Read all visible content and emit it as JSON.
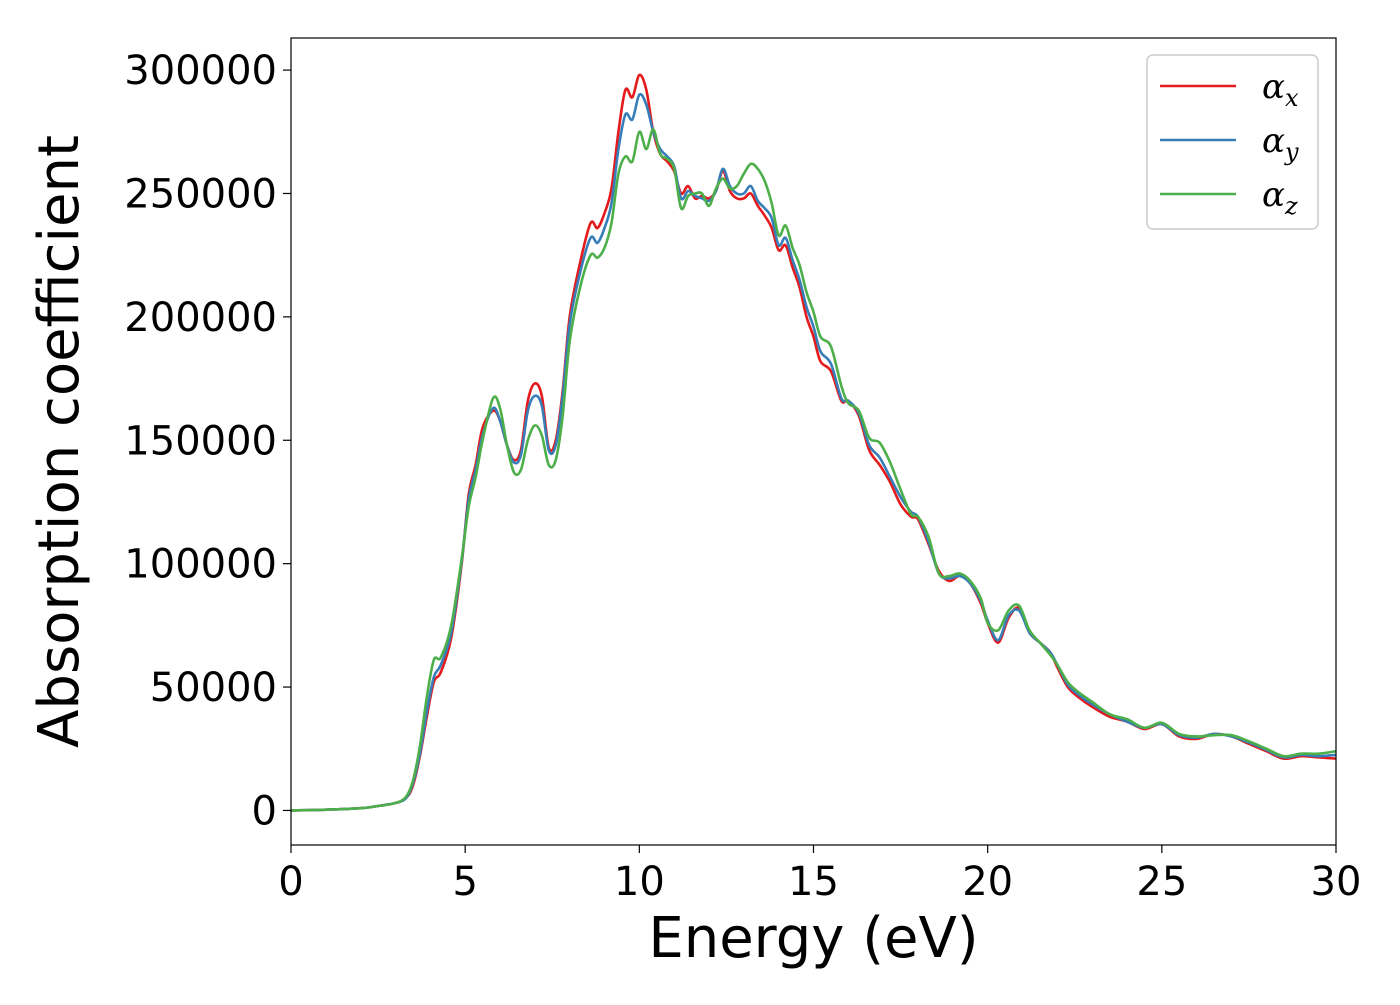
{
  "chart_data": {
    "type": "line",
    "xlabel": "Energy (eV)",
    "ylabel": "Absorption coefficient",
    "xlim": [
      0,
      30
    ],
    "ylim": [
      -14000,
      313000
    ],
    "xticks": [
      0,
      5,
      10,
      15,
      20,
      25,
      30
    ],
    "yticks": [
      0,
      50000,
      100000,
      150000,
      200000,
      250000,
      300000
    ],
    "xtick_labels": [
      "0",
      "5",
      "10",
      "15",
      "20",
      "25",
      "30"
    ],
    "ytick_labels": [
      "0",
      "50000",
      "100000",
      "150000",
      "200000",
      "250000",
      "300000"
    ],
    "legend_position": "top-right",
    "grid": false,
    "x": [
      0,
      1,
      2,
      2.5,
      3,
      3.3,
      3.5,
      3.7,
      3.9,
      4.1,
      4.3,
      4.6,
      4.9,
      5.1,
      5.3,
      5.5,
      5.8,
      6.0,
      6.2,
      6.4,
      6.6,
      6.8,
      7.0,
      7.2,
      7.4,
      7.6,
      7.8,
      8.0,
      8.3,
      8.6,
      8.8,
      9.0,
      9.2,
      9.4,
      9.6,
      9.8,
      10.0,
      10.2,
      10.4,
      10.6,
      10.8,
      11.0,
      11.2,
      11.4,
      11.6,
      11.8,
      12.0,
      12.2,
      12.4,
      12.6,
      12.8,
      13.0,
      13.2,
      13.4,
      13.6,
      13.8,
      14.0,
      14.2,
      14.4,
      14.6,
      14.8,
      15.0,
      15.2,
      15.5,
      15.8,
      16.0,
      16.3,
      16.6,
      16.9,
      17.2,
      17.5,
      17.8,
      18.0,
      18.3,
      18.6,
      18.9,
      19.2,
      19.5,
      19.8,
      20.0,
      20.3,
      20.6,
      20.9,
      21.2,
      21.5,
      21.8,
      22.0,
      22.3,
      22.6,
      23.0,
      23.5,
      24.0,
      24.5,
      25.0,
      25.5,
      26.0,
      26.5,
      27.0,
      27.5,
      28.0,
      28.5,
      29.0,
      29.5,
      30.0
    ],
    "series": [
      {
        "name": "αx",
        "symbol": "α",
        "subscript": "x",
        "color": "#e41a1c",
        "values": [
          0,
          300,
          900,
          1800,
          3000,
          5000,
          10000,
          22000,
          38000,
          52000,
          56000,
          70000,
          100000,
          128000,
          140000,
          155000,
          162000,
          158000,
          148000,
          142000,
          146000,
          166000,
          173000,
          168000,
          147000,
          150000,
          170000,
          200000,
          222000,
          238000,
          236000,
          242000,
          252000,
          275000,
          292000,
          289000,
          298000,
          292000,
          275000,
          266000,
          263000,
          259000,
          250000,
          253000,
          248000,
          249000,
          248000,
          251000,
          259000,
          251000,
          248000,
          248000,
          250000,
          245000,
          241000,
          236000,
          227000,
          229000,
          220000,
          212000,
          200000,
          192000,
          182000,
          178000,
          166000,
          166000,
          160000,
          146000,
          140000,
          133000,
          124000,
          119000,
          118000,
          108000,
          97000,
          93000,
          95000,
          92000,
          84000,
          76000,
          68000,
          78000,
          82000,
          72000,
          68000,
          64000,
          58000,
          50000,
          46000,
          42000,
          38000,
          36000,
          33000,
          35000,
          30000,
          29000,
          31000,
          30000,
          27000,
          24000,
          21000,
          22000,
          21500,
          21000
        ]
      },
      {
        "name": "αy",
        "symbol": "α",
        "subscript": "y",
        "color": "#377eb8",
        "values": [
          0,
          300,
          900,
          1800,
          3000,
          5000,
          11000,
          23000,
          40000,
          54000,
          59000,
          72000,
          101000,
          126000,
          138000,
          152000,
          163000,
          158000,
          148000,
          141000,
          144000,
          162000,
          168000,
          164000,
          146000,
          148000,
          168000,
          197000,
          218000,
          232000,
          230000,
          236000,
          246000,
          268000,
          282000,
          280000,
          290000,
          286000,
          275000,
          268000,
          265000,
          261000,
          248000,
          251000,
          249000,
          248000,
          247000,
          251000,
          260000,
          253000,
          250000,
          250000,
          253000,
          247000,
          244000,
          240000,
          229000,
          232000,
          223000,
          215000,
          204000,
          196000,
          186000,
          181000,
          167000,
          166000,
          161000,
          148000,
          143000,
          135000,
          127000,
          121000,
          119000,
          109000,
          96000,
          94000,
          95000,
          92000,
          85000,
          77000,
          69000,
          79000,
          81000,
          72000,
          68000,
          64000,
          59000,
          51000,
          47000,
          43000,
          39000,
          36000,
          33500,
          35000,
          30500,
          29500,
          31000,
          30000,
          27500,
          24500,
          21500,
          22500,
          22000,
          22500
        ]
      },
      {
        "name": "αz",
        "symbol": "α",
        "subscript": "z",
        "color": "#4daf4a",
        "values": [
          0,
          300,
          900,
          1800,
          3000,
          5500,
          12000,
          26000,
          46000,
          61000,
          62000,
          75000,
          102000,
          123000,
          135000,
          150000,
          167000,
          163000,
          148000,
          137000,
          138000,
          150000,
          156000,
          152000,
          140000,
          142000,
          160000,
          190000,
          212000,
          225000,
          224000,
          228000,
          238000,
          258000,
          265000,
          263000,
          275000,
          268000,
          276000,
          266000,
          264000,
          260000,
          244000,
          249000,
          250000,
          250000,
          245000,
          252000,
          256000,
          252000,
          253000,
          258000,
          262000,
          260000,
          255000,
          246000,
          233000,
          237000,
          228000,
          221000,
          210000,
          202000,
          192000,
          188000,
          172000,
          165000,
          162000,
          151000,
          149000,
          141000,
          130000,
          120000,
          119000,
          111000,
          96000,
          95000,
          96000,
          93000,
          86000,
          76000,
          73000,
          81000,
          83000,
          73000,
          68000,
          63000,
          59000,
          52000,
          48000,
          44000,
          39000,
          37000,
          33500,
          35500,
          31000,
          30000,
          30500,
          30500,
          28000,
          25000,
          22000,
          23000,
          23000,
          24000
        ]
      }
    ]
  }
}
